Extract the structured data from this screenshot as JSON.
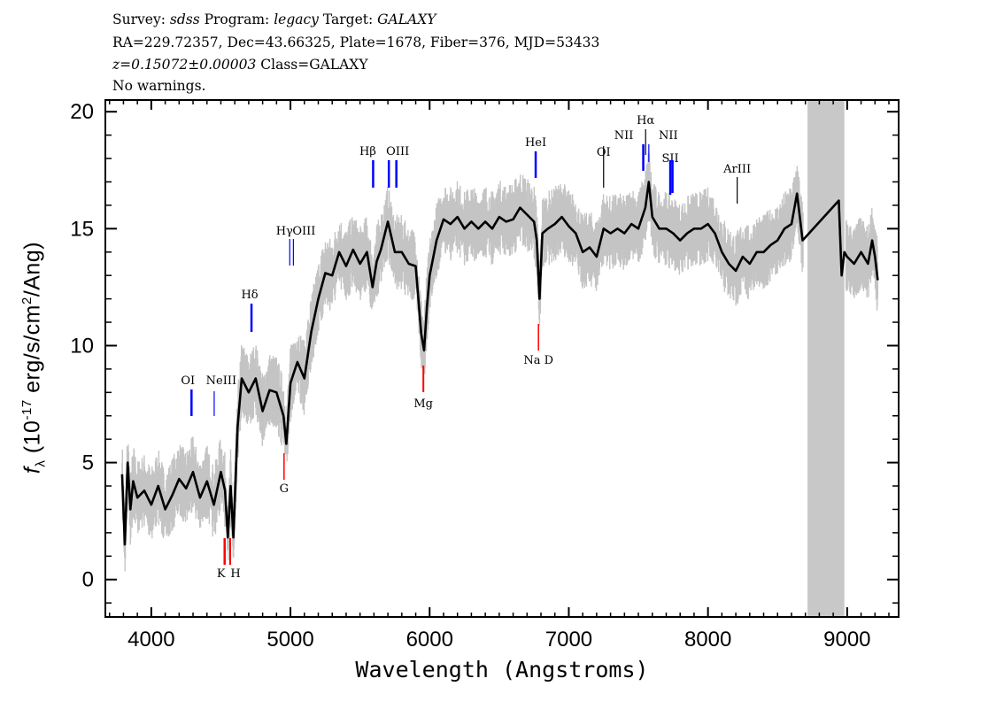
{
  "header": {
    "line1": {
      "survey_label": "Survey:",
      "survey": "sdss",
      "program_label": "Program:",
      "program": "legacy",
      "target_label": "Target:",
      "target": "GALAXY"
    },
    "line2": "RA=229.72357, Dec=43.66325, Plate=1678, Fiber=376, MJD=53433",
    "line3": {
      "z": "z=0.15072±0.00003",
      "class": "Class=GALAXY"
    },
    "line4": "No warnings."
  },
  "chart_data": {
    "type": "line",
    "xlabel": "Wavelength (Angstroms)",
    "ylabel": {
      "prefix": "f",
      "sub": "λ",
      "unit_pre": " (10",
      "exp": "-17",
      "unit_mid": " erg/s/cm",
      "exp2": "2",
      "unit_post": "/Ang)"
    },
    "xlim": [
      3670,
      9370
    ],
    "ylim": [
      -1.6,
      20.5
    ],
    "xticks": [
      4000,
      5000,
      6000,
      7000,
      8000,
      9000
    ],
    "yticks": [
      0,
      5,
      10,
      15,
      20
    ],
    "grid": false,
    "colors": {
      "flux": "#000000",
      "error_band": "#c4c4c4",
      "masked_region": "#c8c8c8",
      "emission": "#0000ff",
      "absorption": "#ff0000",
      "sky": "#000000"
    },
    "masked_region": [
      8715,
      8980
    ],
    "error_sigma": 0.8,
    "x": [
      3790,
      3810,
      3830,
      3850,
      3870,
      3900,
      3950,
      4000,
      4050,
      4100,
      4150,
      4200,
      4250,
      4300,
      4350,
      4400,
      4450,
      4500,
      4530,
      4550,
      4570,
      4590,
      4620,
      4650,
      4700,
      4750,
      4800,
      4850,
      4900,
      4950,
      4970,
      5000,
      5050,
      5100,
      5150,
      5200,
      5250,
      5300,
      5350,
      5400,
      5450,
      5500,
      5550,
      5590,
      5620,
      5650,
      5700,
      5750,
      5800,
      5850,
      5900,
      5940,
      5960,
      5980,
      6000,
      6050,
      6100,
      6150,
      6200,
      6250,
      6300,
      6350,
      6400,
      6450,
      6500,
      6550,
      6600,
      6650,
      6700,
      6750,
      6770,
      6790,
      6810,
      6850,
      6900,
      6950,
      7000,
      7050,
      7100,
      7150,
      7200,
      7250,
      7300,
      7350,
      7400,
      7450,
      7500,
      7550,
      7575,
      7600,
      7650,
      7700,
      7750,
      7800,
      7850,
      7900,
      7950,
      8000,
      8050,
      8100,
      8150,
      8200,
      8250,
      8300,
      8350,
      8400,
      8450,
      8500,
      8550,
      8600,
      8640,
      8660,
      8680,
      8940,
      8960,
      8980,
      9000,
      9050,
      9100,
      9150,
      9180,
      9200,
      9220
    ],
    "flux": [
      4.5,
      1.5,
      5.0,
      3.0,
      4.2,
      3.5,
      3.8,
      3.2,
      4.0,
      3.0,
      3.6,
      4.3,
      3.9,
      4.6,
      3.5,
      4.2,
      3.2,
      4.6,
      3.8,
      1.8,
      4.0,
      1.8,
      6.5,
      8.6,
      8.0,
      8.6,
      7.2,
      8.1,
      8.0,
      7.0,
      5.8,
      8.4,
      9.3,
      8.6,
      10.6,
      12.0,
      13.1,
      13.0,
      14.0,
      13.4,
      14.1,
      13.5,
      14.0,
      12.5,
      13.6,
      14.1,
      15.3,
      14.0,
      14.0,
      13.5,
      13.4,
      10.5,
      9.8,
      11.6,
      13.0,
      14.5,
      15.4,
      15.2,
      15.5,
      15.0,
      15.3,
      15.0,
      15.3,
      15.0,
      15.5,
      15.3,
      15.4,
      15.9,
      15.6,
      15.3,
      14.5,
      12.0,
      14.8,
      15.0,
      15.2,
      15.5,
      15.1,
      14.8,
      14.0,
      14.2,
      13.8,
      15.0,
      14.8,
      15.0,
      14.8,
      15.2,
      15.0,
      15.9,
      17.0,
      15.5,
      15.0,
      15.0,
      14.8,
      14.5,
      14.8,
      15.0,
      15.0,
      15.2,
      14.8,
      14.0,
      13.5,
      13.2,
      13.8,
      13.5,
      14.0,
      14.0,
      14.3,
      14.5,
      15.0,
      15.2,
      16.5,
      15.5,
      14.5,
      16.2,
      13.0,
      14.0,
      13.8,
      13.5,
      14.0,
      13.5,
      14.5,
      13.8,
      12.8
    ],
    "lines": [
      {
        "name": "OI",
        "wavelength": 4289,
        "type": "emission"
      },
      {
        "name": "NeIII",
        "wavelength": 4452,
        "type": "emission"
      },
      {
        "name": "K",
        "wavelength": 4527,
        "type": "absorption"
      },
      {
        "name": "H",
        "wavelength": 4567,
        "type": "absorption"
      },
      {
        "name": "Hδ",
        "wavelength": 4720,
        "type": "emission"
      },
      {
        "name": "G",
        "wavelength": 4954,
        "type": "absorption"
      },
      {
        "name": "Hγ",
        "wavelength": 4995,
        "type": "emission"
      },
      {
        "name": "OIII",
        "wavelength": 5021,
        "type": "emission"
      },
      {
        "name": "Hβ",
        "wavelength": 5594,
        "type": "emission"
      },
      {
        "name": "OIII",
        "wavelength": 5707,
        "type": "emission"
      },
      {
        "name": "",
        "wavelength": 5761,
        "type": "emission"
      },
      {
        "name": "Mg",
        "wavelength": 5955,
        "type": "absorption"
      },
      {
        "name": "HeI",
        "wavelength": 6762,
        "type": "emission"
      },
      {
        "name": "Na  D",
        "wavelength": 6782,
        "type": "absorption"
      },
      {
        "name": "OI",
        "wavelength": 7250,
        "type": "sky"
      },
      {
        "name": "NII",
        "wavelength": 7535,
        "type": "emission"
      },
      {
        "name": "Hα",
        "wavelength": 7552,
        "type": "sky"
      },
      {
        "name": "NII",
        "wavelength": 7575,
        "type": "emission"
      },
      {
        "name": "SII",
        "wavelength": 7729,
        "type": "emission"
      },
      {
        "name": "",
        "wavelength": 7745,
        "type": "emission"
      },
      {
        "name": "ArIII",
        "wavelength": 8210,
        "type": "sky"
      }
    ]
  }
}
